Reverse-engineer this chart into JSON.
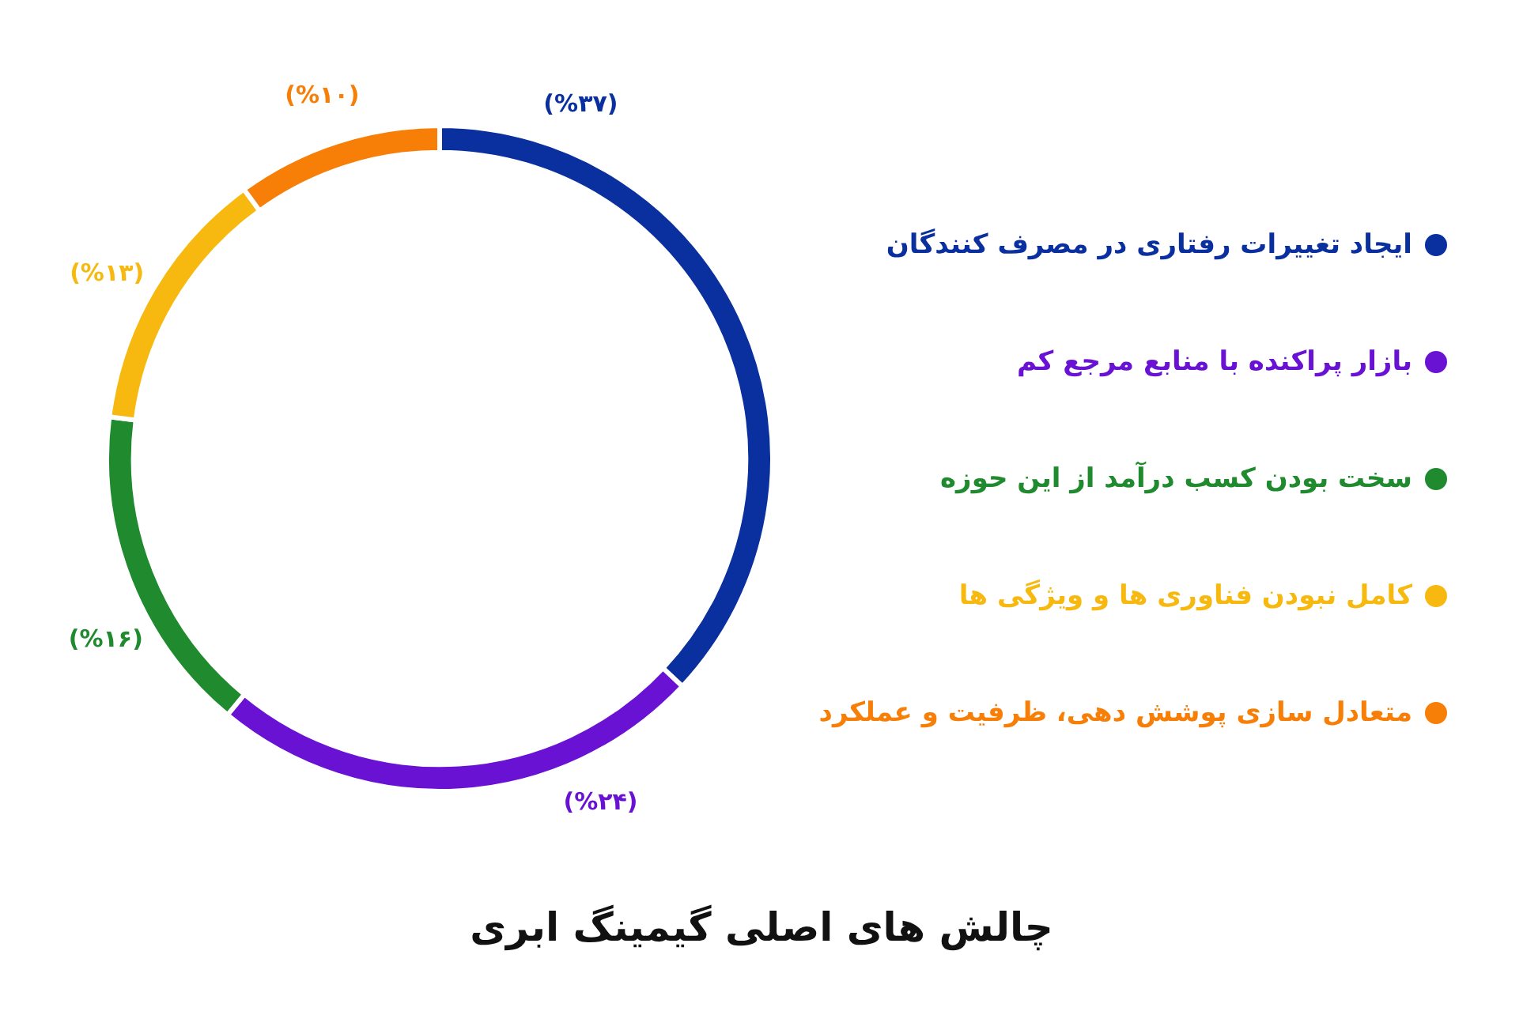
{
  "chart_data": {
    "type": "donut",
    "title": "چالش های اصلی گیمینگ ابری",
    "categories": [
      "ایجاد تغییرات رفتاری در مصرف کنندگان",
      "بازار پراکنده با منابع مرجع کم",
      "سخت بودن کسب درآمد از این حوزه",
      "کامل نبودن فناوری ها و ویژگی ها",
      "متعادل سازی پوشش دهی، ظرفیت و عملکرد"
    ],
    "values": [
      37,
      24,
      16,
      13,
      10
    ],
    "colors": [
      "#0a2f9e",
      "#6a12d4",
      "#1f8a2e",
      "#f7b90f",
      "#f77f08"
    ],
    "value_labels": [
      "(%۳۷)",
      "(%۲۴)",
      "(%۱۶)",
      "(%۱۳)",
      "(%۱۰)"
    ],
    "legend": "right"
  }
}
